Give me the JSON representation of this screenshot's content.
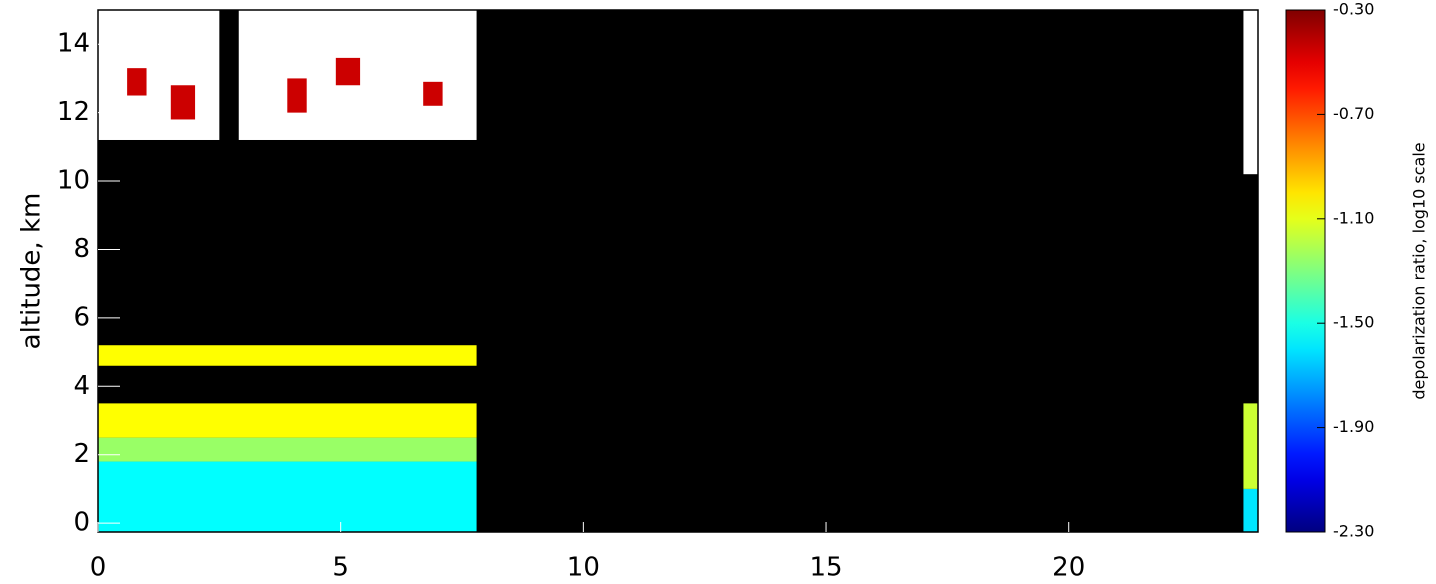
{
  "chart_data": {
    "type": "heatmap",
    "y_label": "altitude, km",
    "xlim": [
      0,
      23.9
    ],
    "xticks": [
      0,
      5,
      10,
      15,
      20
    ],
    "ylim": [
      -0.26,
      15
    ],
    "yticks": [
      0,
      2,
      4,
      6,
      8,
      10,
      12,
      14
    ],
    "colormap": "jet",
    "over_color": "#ffffff",
    "background": "#000000",
    "colorbar": {
      "label": "depolarization ratio, log10 scale",
      "lim": [
        -2.3,
        -0.3
      ],
      "ticks": [
        {
          "value": -0.3,
          "label": "-0.30"
        },
        {
          "value": -0.7,
          "label": "-0.70"
        },
        {
          "value": -1.1,
          "label": "-1.10"
        },
        {
          "value": -1.5,
          "label": "-1.50"
        },
        {
          "value": -1.9,
          "label": "-1.90"
        },
        {
          "value": -2.3,
          "label": "-2.30"
        }
      ]
    },
    "cells": [
      {
        "x": [
          0,
          7.8
        ],
        "y": [
          -0.26,
          1.8
        ],
        "value": -1.55
      },
      {
        "x": [
          0,
          7.8
        ],
        "y": [
          1.8,
          2.5
        ],
        "value": -1.25
      },
      {
        "x": [
          0,
          7.8
        ],
        "y": [
          2.5,
          3.5
        ],
        "value": -1.05
      },
      {
        "x": [
          0,
          7.8
        ],
        "y": [
          4.6,
          5.2
        ],
        "value": -1.05
      },
      {
        "x": [
          0,
          2.5
        ],
        "y": [
          11.2,
          15
        ],
        "value": -0.2
      },
      {
        "x": [
          2.9,
          7.8
        ],
        "y": [
          11.2,
          15
        ],
        "value": -0.2
      },
      {
        "x": [
          0.6,
          1.0
        ],
        "y": [
          12.5,
          13.3
        ],
        "value": -0.45
      },
      {
        "x": [
          1.5,
          2.0
        ],
        "y": [
          11.8,
          12.8
        ],
        "value": -0.45
      },
      {
        "x": [
          3.9,
          4.3
        ],
        "y": [
          12.0,
          13.0
        ],
        "value": -0.45
      },
      {
        "x": [
          4.9,
          5.4
        ],
        "y": [
          12.8,
          13.6
        ],
        "value": -0.45
      },
      {
        "x": [
          6.7,
          7.1
        ],
        "y": [
          12.2,
          12.9
        ],
        "value": -0.45
      },
      {
        "x": [
          23.6,
          23.9
        ],
        "y": [
          -0.26,
          1.0
        ],
        "value": -1.6
      },
      {
        "x": [
          23.6,
          23.9
        ],
        "y": [
          1.0,
          3.5
        ],
        "value": -1.15
      },
      {
        "x": [
          23.6,
          23.9
        ],
        "y": [
          10.2,
          15
        ],
        "value": -0.2
      }
    ]
  }
}
